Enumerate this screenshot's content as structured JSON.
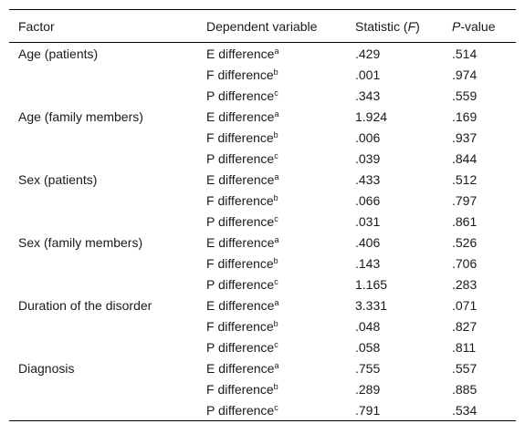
{
  "table": {
    "headers": {
      "factor": "Factor",
      "dependent": "Dependent variable",
      "statistic_prefix": "Statistic (",
      "statistic_symbol": "F",
      "statistic_suffix": ")",
      "pvalue_symbol": "P",
      "pvalue_suffix": "-value"
    },
    "groups": [
      {
        "factor": "Age (patients)",
        "rows": [
          {
            "dv": "E difference",
            "sup": "a",
            "stat": ".429",
            "p": ".514"
          },
          {
            "dv": "F difference",
            "sup": "b",
            "stat": ".001",
            "p": ".974"
          },
          {
            "dv": "P difference",
            "sup": "c",
            "stat": ".343",
            "p": ".559"
          }
        ]
      },
      {
        "factor": "Age (family members)",
        "rows": [
          {
            "dv": "E difference",
            "sup": "a",
            "stat": "1.924",
            "p": ".169"
          },
          {
            "dv": "F difference",
            "sup": "b",
            "stat": ".006",
            "p": ".937"
          },
          {
            "dv": "P difference",
            "sup": "c",
            "stat": ".039",
            "p": ".844"
          }
        ]
      },
      {
        "factor": "Sex (patients)",
        "rows": [
          {
            "dv": "E difference",
            "sup": "a",
            "stat": ".433",
            "p": ".512"
          },
          {
            "dv": "F difference",
            "sup": "b",
            "stat": ".066",
            "p": ".797"
          },
          {
            "dv": "P difference",
            "sup": "c",
            "stat": ".031",
            "p": ".861"
          }
        ]
      },
      {
        "factor": "Sex (family members)",
        "rows": [
          {
            "dv": "E difference",
            "sup": "a",
            "stat": ".406",
            "p": ".526"
          },
          {
            "dv": "F difference",
            "sup": "b",
            "stat": ".143",
            "p": ".706"
          },
          {
            "dv": "P difference",
            "sup": "c",
            "stat": "1.165",
            "p": ".283"
          }
        ]
      },
      {
        "factor": "Duration of the disorder",
        "rows": [
          {
            "dv": "E difference",
            "sup": "a",
            "stat": "3.331",
            "p": ".071"
          },
          {
            "dv": "F difference",
            "sup": "b",
            "stat": ".048",
            "p": ".827"
          },
          {
            "dv": "P difference",
            "sup": "c",
            "stat": ".058",
            "p": ".811"
          }
        ]
      },
      {
        "factor": "Diagnosis",
        "rows": [
          {
            "dv": "E difference",
            "sup": "a",
            "stat": ".755",
            "p": ".557"
          },
          {
            "dv": "F difference",
            "sup": "b",
            "stat": ".289",
            "p": ".885"
          },
          {
            "dv": "P difference",
            "sup": "c",
            "stat": ".791",
            "p": ".534"
          }
        ]
      }
    ]
  }
}
